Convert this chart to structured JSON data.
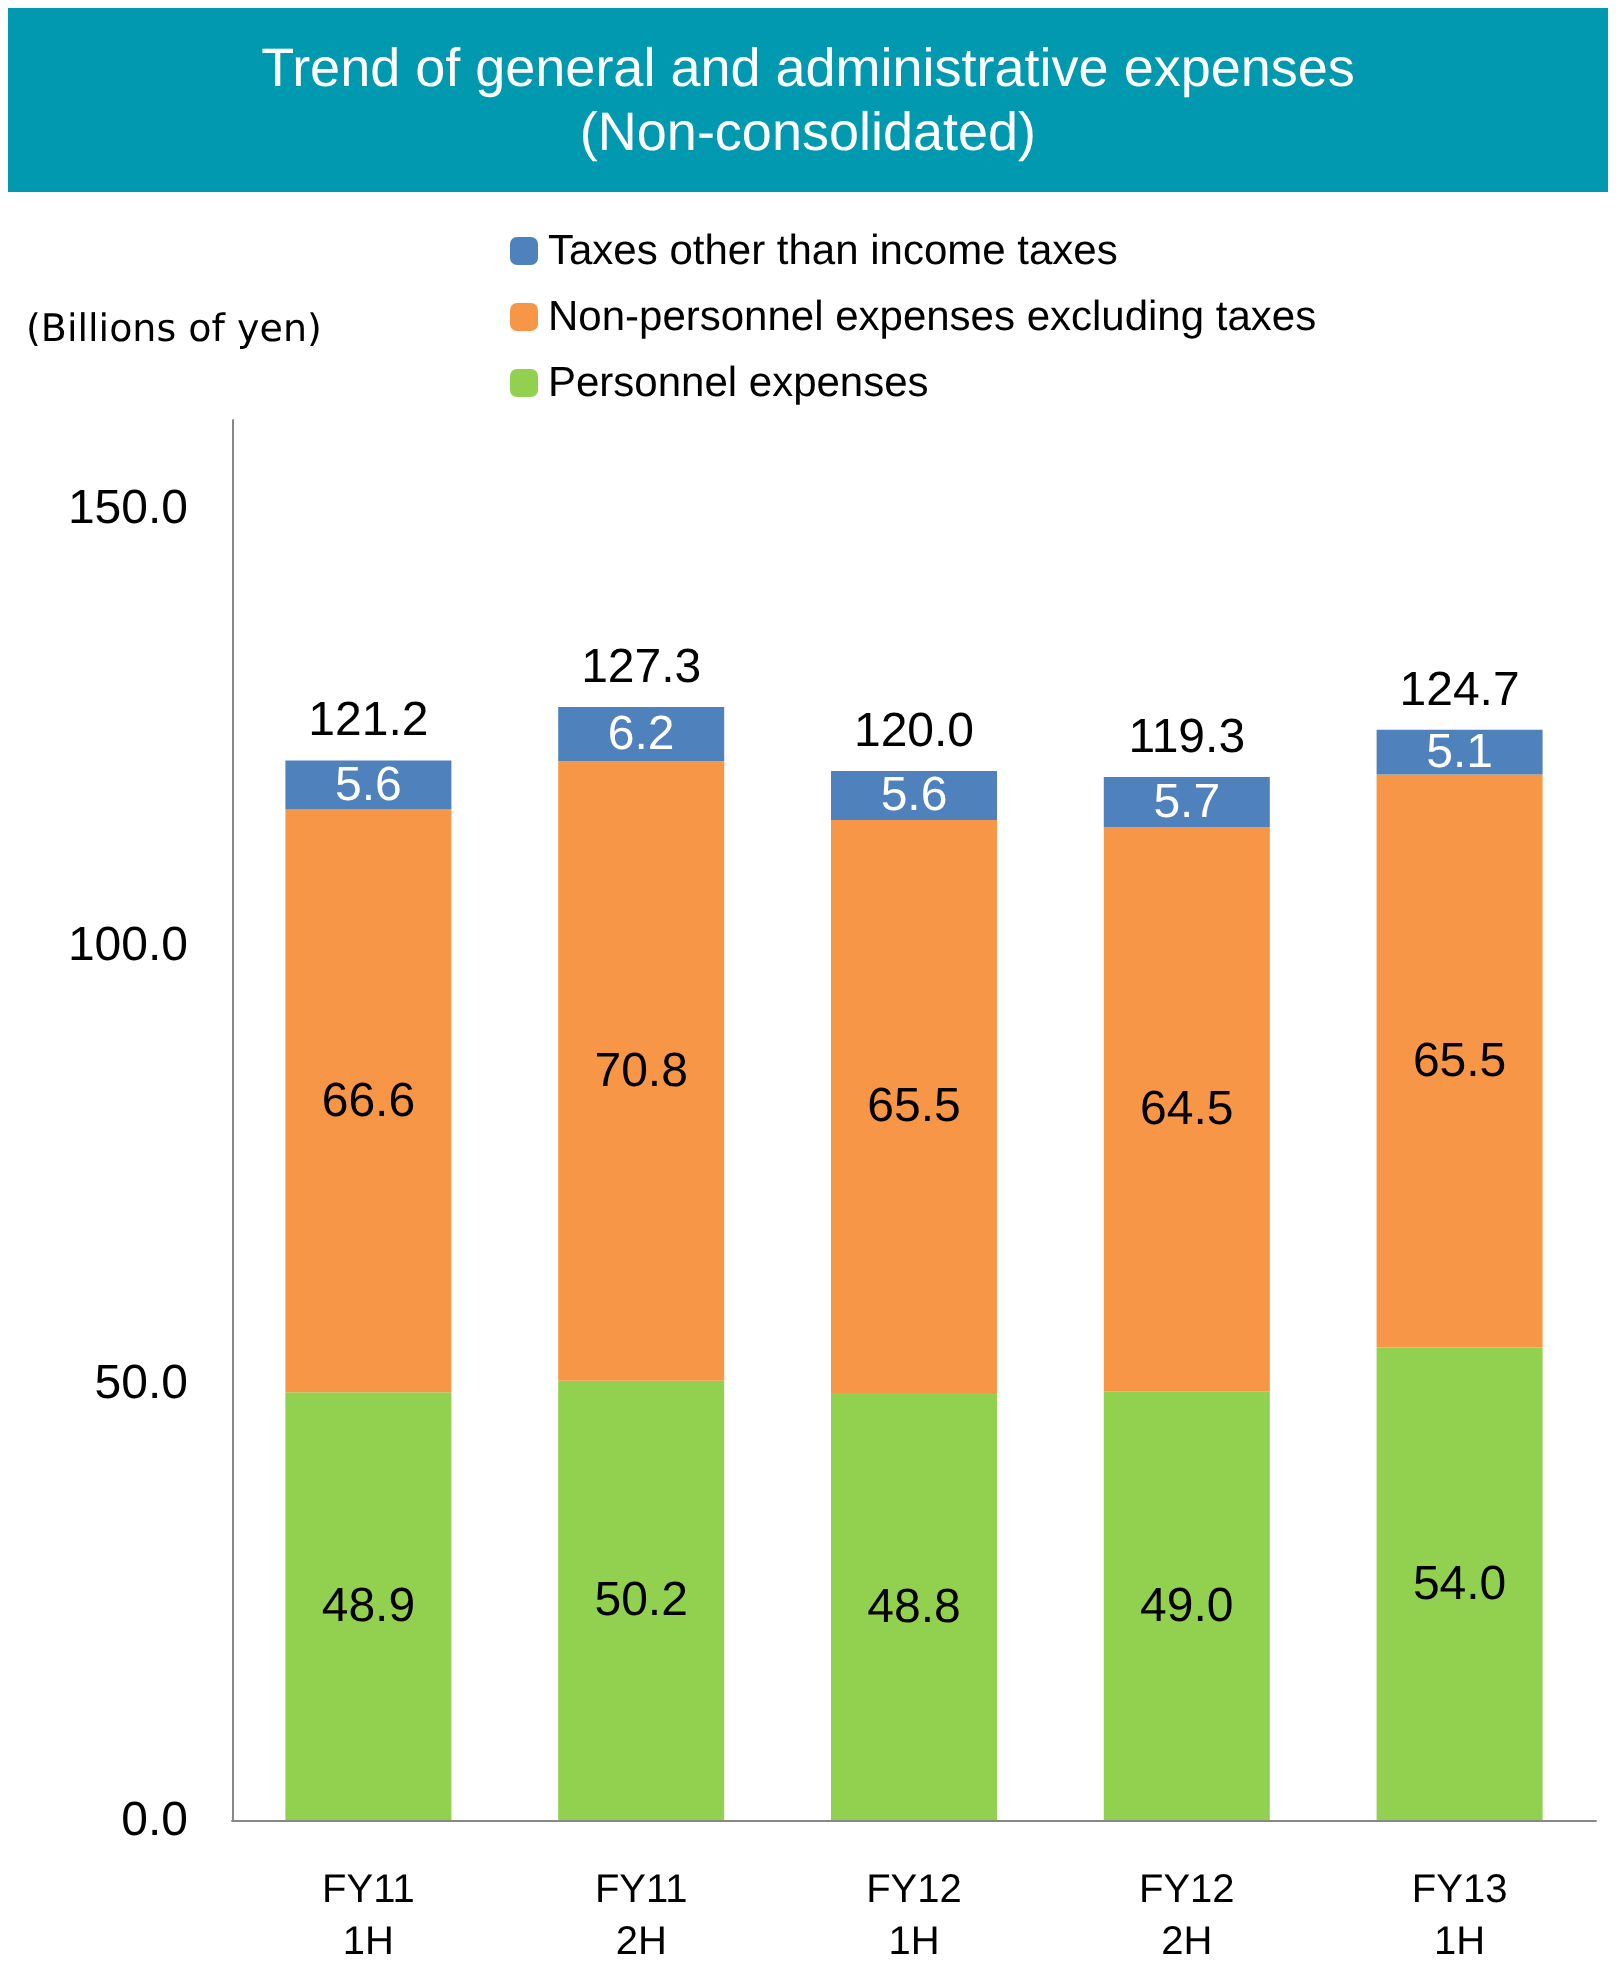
{
  "chart_data": {
    "type": "bar",
    "title": "Trend of general and administrative expenses\n(Non-consolidated)",
    "ylabel": "(Billions of yen)",
    "categories": [
      "FY11\n1H",
      "FY11\n2H",
      "FY12\n1H",
      "FY12\n2H",
      "FY13\n1H"
    ],
    "series": [
      {
        "name": "Personnel expenses",
        "color": "#92d050",
        "values": [
          48.9,
          50.2,
          48.8,
          49.0,
          54.0
        ],
        "value_labels": [
          "48.9",
          "50.2",
          "48.8",
          "49.0",
          "54.0"
        ]
      },
      {
        "name": "Non-personnel expenses excluding taxes",
        "color": "#f79646",
        "values": [
          66.6,
          70.8,
          65.5,
          64.5,
          65.5
        ],
        "value_labels": [
          "66.6",
          "70.8",
          "65.5",
          "64.5",
          "65.5"
        ]
      },
      {
        "name": "Taxes other than income taxes",
        "color": "#4f81bd",
        "values": [
          5.6,
          6.2,
          5.6,
          5.7,
          5.1
        ],
        "value_labels": [
          "5.6",
          "6.2",
          "5.6",
          "5.7",
          "5.1"
        ]
      }
    ],
    "stacked": true,
    "totals": [
      "121.2",
      "127.3",
      "120.0",
      "119.3",
      "124.7"
    ],
    "ylim": [
      0,
      160
    ],
    "yticks": [
      {
        "value": 0,
        "label": "0.0"
      },
      {
        "value": 50,
        "label": "50.0"
      },
      {
        "value": 100,
        "label": "100.0"
      },
      {
        "value": 150,
        "label": "150.0"
      }
    ],
    "grid": false,
    "legend": "top"
  }
}
